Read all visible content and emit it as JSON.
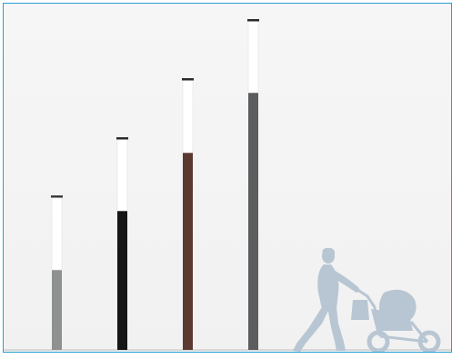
{
  "scene": {
    "items": [
      {
        "name": "bollard-pole-grey",
        "body_color": "#8e918f",
        "lamp_color": "#ffffff",
        "cap_color": "#3a3a3a"
      },
      {
        "name": "bollard-pole-black",
        "body_color": "#161616",
        "lamp_color": "#ffffff",
        "cap_color": "#2a2a2a"
      },
      {
        "name": "bollard-pole-brown",
        "body_color": "#5a3a30",
        "lamp_color": "#ffffff",
        "cap_color": "#2a2a2a"
      },
      {
        "name": "bollard-pole-dark-grey",
        "body_color": "#5b5d5e",
        "lamp_color": "#ffffff",
        "cap_color": "#2a2a2a"
      }
    ],
    "silhouette_color": "#b8c6d3",
    "ground_color": "#cfcfcf",
    "frame_border_color": "#2a9fd6"
  }
}
